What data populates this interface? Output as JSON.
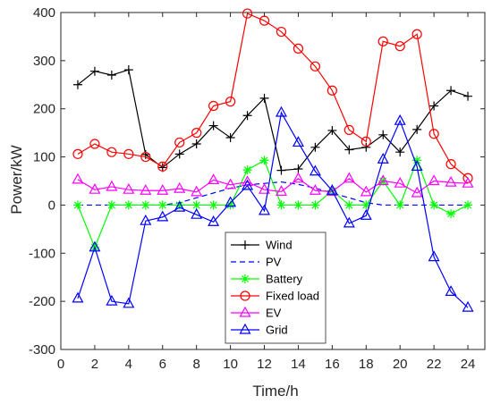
{
  "chart_data": {
    "type": "line",
    "xlabel": "Time/h",
    "ylabel": "Power/kW",
    "xlim": [
      0,
      25
    ],
    "ylim": [
      -300,
      400
    ],
    "xticks": [
      0,
      2,
      4,
      6,
      8,
      10,
      12,
      14,
      16,
      18,
      20,
      22,
      24
    ],
    "yticks": [
      -300,
      -200,
      -100,
      0,
      100,
      200,
      300,
      400
    ],
    "grid": false,
    "legend_position": "bottom-center",
    "x": [
      1,
      2,
      3,
      4,
      5,
      6,
      7,
      8,
      9,
      10,
      11,
      12,
      13,
      14,
      15,
      16,
      17,
      18,
      19,
      20,
      21,
      22,
      23,
      24
    ],
    "series": [
      {
        "name": "Wind",
        "color": "#000000",
        "marker": "plus",
        "dash": "solid",
        "values": [
          250,
          278,
          270,
          281,
          105,
          78,
          106,
          127,
          165,
          140,
          186,
          222,
          72,
          75,
          120,
          155,
          115,
          120,
          146,
          110,
          157,
          206,
          238,
          226
        ]
      },
      {
        "name": "PV",
        "color": "#0000ff",
        "marker": "none",
        "dash": "dashed",
        "values": [
          0,
          0,
          0,
          0,
          0,
          0,
          5,
          15,
          25,
          35,
          42,
          45,
          48,
          43,
          35,
          25,
          15,
          5,
          0,
          0,
          0,
          0,
          0,
          0
        ]
      },
      {
        "name": "Battery",
        "color": "#00ff00",
        "marker": "asterisk",
        "dash": "solid",
        "values": [
          0,
          -88,
          0,
          0,
          0,
          0,
          0,
          0,
          0,
          0,
          73,
          93,
          0,
          0,
          0,
          30,
          0,
          0,
          50,
          0,
          93,
          0,
          -18,
          0
        ]
      },
      {
        "name": "Fixed load",
        "color": "#ff0000",
        "marker": "circle",
        "dash": "solid",
        "values": [
          106,
          127,
          110,
          106,
          100,
          80,
          130,
          150,
          206,
          215,
          398,
          383,
          360,
          325,
          288,
          238,
          156,
          132,
          340,
          330,
          355,
          148,
          85,
          56
        ]
      },
      {
        "name": "EV",
        "color": "#ff00ff",
        "marker": "triangle",
        "dash": "solid",
        "values": [
          53,
          32,
          38,
          32,
          30,
          30,
          34,
          27,
          52,
          42,
          48,
          32,
          28,
          55,
          30,
          28,
          55,
          27,
          50,
          45,
          25,
          50,
          47,
          45
        ]
      },
      {
        "name": "Grid",
        "color": "#0000ff",
        "marker": "triangle",
        "dash": "solid",
        "values": [
          -194,
          -88,
          -200,
          -205,
          -33,
          -25,
          -5,
          -20,
          -35,
          5,
          40,
          -12,
          192,
          130,
          70,
          30,
          -38,
          -22,
          95,
          175,
          80,
          -108,
          -180,
          -213
        ]
      }
    ]
  }
}
